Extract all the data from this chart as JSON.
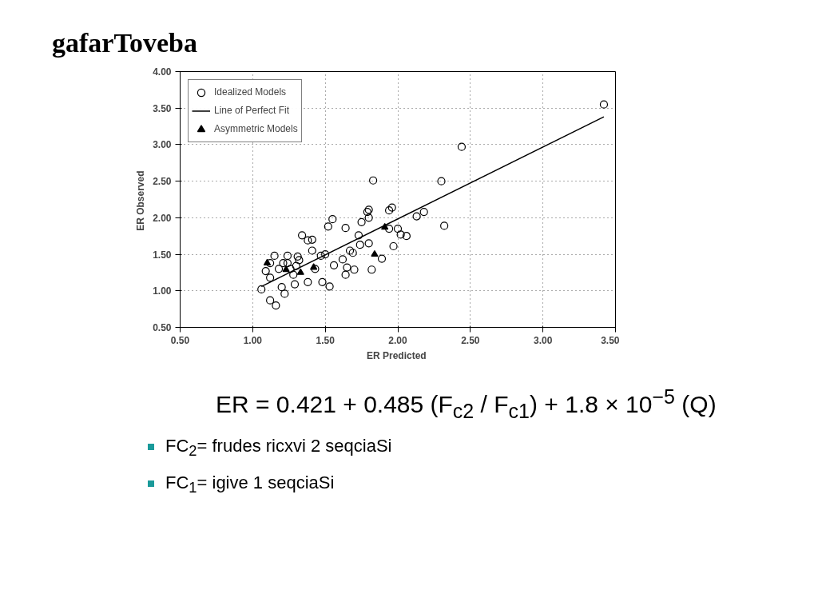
{
  "chart_data": {
    "type": "scatter",
    "title": "gafarToveba",
    "xlabel": "ER  Predicted",
    "ylabel": "ER  Observed",
    "xlim": [
      0.5,
      3.5
    ],
    "ylim": [
      0.5,
      4.0
    ],
    "xticks": [
      {
        "value": 0.5,
        "label": "0.50"
      },
      {
        "value": 1.0,
        "label": "1.00"
      },
      {
        "value": 1.5,
        "label": "1.50"
      },
      {
        "value": 2.0,
        "label": "2.00"
      },
      {
        "value": 2.5,
        "label": "2.50"
      },
      {
        "value": 3.0,
        "label": "3.00"
      },
      {
        "value": 3.5,
        "label": "3.50"
      }
    ],
    "yticks": [
      {
        "value": 0.5,
        "label": "0.50"
      },
      {
        "value": 1.0,
        "label": "1.00"
      },
      {
        "value": 1.5,
        "label": "1.50"
      },
      {
        "value": 2.0,
        "label": "2.00"
      },
      {
        "value": 2.5,
        "label": "2.50"
      },
      {
        "value": 3.0,
        "label": "3.00"
      },
      {
        "value": 3.5,
        "label": "3.50"
      },
      {
        "value": 4.0,
        "label": "4.00"
      }
    ],
    "grid": true,
    "legend": "top left",
    "series": [
      {
        "name": "Idealized Models",
        "marker": "circle",
        "color": "#000000",
        "x": [
          1.06,
          1.09,
          1.12,
          1.15,
          1.12,
          1.12,
          1.16,
          1.18,
          1.21,
          1.24,
          1.2,
          1.22,
          1.24,
          1.26,
          1.28,
          1.29,
          1.31,
          1.32,
          1.3,
          1.34,
          1.38,
          1.41,
          1.41,
          1.38,
          1.43,
          1.47,
          1.5,
          1.48,
          1.53,
          1.52,
          1.55,
          1.64,
          1.56,
          1.62,
          1.65,
          1.64,
          1.7,
          1.67,
          1.69,
          1.73,
          1.74,
          1.75,
          1.79,
          1.8,
          1.8,
          1.8,
          1.82,
          1.83,
          1.89,
          1.94,
          1.96,
          1.94,
          1.97,
          2.0,
          2.02,
          2.06,
          2.13,
          2.18,
          2.3,
          2.32,
          2.44,
          3.42
        ],
        "values": [
          1.02,
          1.27,
          1.38,
          1.48,
          1.18,
          0.87,
          0.8,
          1.3,
          1.38,
          1.48,
          1.05,
          0.96,
          1.38,
          1.3,
          1.22,
          1.09,
          1.47,
          1.42,
          1.34,
          1.76,
          1.69,
          1.7,
          1.55,
          1.12,
          1.3,
          1.48,
          1.5,
          1.12,
          1.06,
          1.88,
          1.98,
          1.86,
          1.35,
          1.43,
          1.32,
          1.22,
          1.29,
          1.55,
          1.52,
          1.76,
          1.63,
          1.94,
          2.08,
          2.11,
          2.0,
          1.65,
          1.29,
          2.51,
          1.44,
          2.1,
          2.14,
          1.85,
          1.61,
          1.85,
          1.77,
          1.75,
          2.02,
          2.08,
          2.5,
          1.89,
          2.97,
          3.55
        ]
      },
      {
        "name": "Line of Perfect Fit",
        "type": "line",
        "line_style": "solid",
        "color": "#000000",
        "x": [
          1.06,
          3.42
        ],
        "values": [
          1.06,
          3.38
        ]
      },
      {
        "name": "Asymmetric Models",
        "marker": "triangle",
        "color": "#000000",
        "x": [
          1.1,
          1.23,
          1.33,
          1.42,
          1.91,
          1.84
        ],
        "values": [
          1.38,
          1.29,
          1.25,
          1.32,
          1.87,
          1.5
        ]
      }
    ],
    "annotations": [
      "ER = 0.421 + 0.485 (F$_{c2}$ / F$_{c1}$) + 1.8 × 10$^{−5}$ (Q)",
      "FC$_{2}$= frudes  ricxvi 2 seqciaSi",
      "FC$_{1}$= igive 1 seqciaSi"
    ]
  }
}
